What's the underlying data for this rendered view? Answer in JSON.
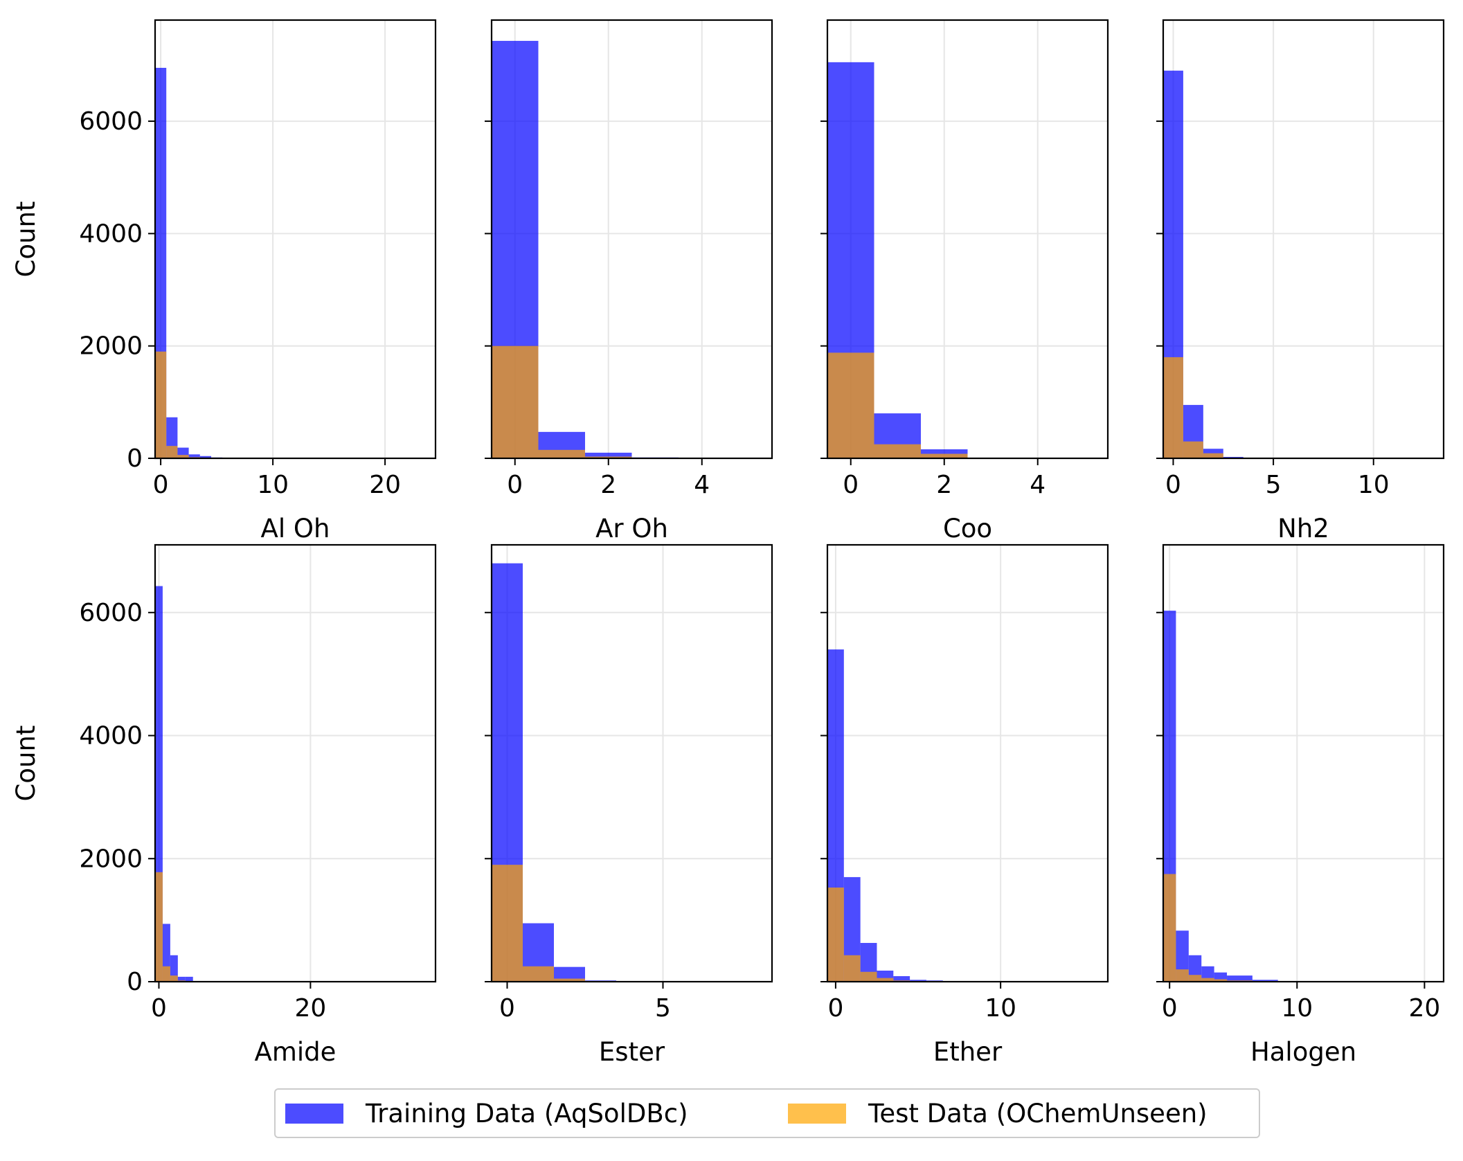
{
  "colors": {
    "training": "#0000ff",
    "test": "#ffa500",
    "overlap": "#cc8844",
    "grid": "#e6e6e6"
  },
  "legend": {
    "training_label": "Training Data (AqSolDBc)",
    "test_label": "Test Data (OChemUnseen)"
  },
  "chart_data": [
    {
      "type": "bar",
      "xlabel": "Al Oh",
      "ylabel": "Count",
      "ylim": [
        0,
        7800
      ],
      "xlim": [
        -0.5,
        24.5
      ],
      "xticks": [
        0,
        10,
        20
      ],
      "yticks": [
        0,
        2000,
        4000,
        6000
      ],
      "grid": true,
      "series": [
        {
          "name": "Training Data (AqSolDBc)",
          "bins": [
            [
              -0.5,
              0.5,
              6950
            ],
            [
              0.5,
              1.5,
              730
            ],
            [
              1.5,
              2.5,
              190
            ],
            [
              2.5,
              3.5,
              70
            ],
            [
              3.5,
              4.5,
              40
            ],
            [
              4.5,
              5.5,
              15
            ]
          ]
        },
        {
          "name": "Test Data (OChemUnseen)",
          "bins": [
            [
              -0.5,
              0.5,
              1900
            ],
            [
              0.5,
              1.5,
              220
            ],
            [
              1.5,
              2.5,
              60
            ],
            [
              2.5,
              3.5,
              20
            ],
            [
              3.5,
              4.5,
              10
            ]
          ]
        }
      ]
    },
    {
      "type": "bar",
      "xlabel": "Ar Oh",
      "ylabel": "",
      "ylim": [
        0,
        7800
      ],
      "xlim": [
        -0.5,
        5.5
      ],
      "xticks": [
        0,
        2,
        4
      ],
      "yticks": [
        0,
        2000,
        4000,
        6000
      ],
      "grid": true,
      "series": [
        {
          "name": "Training Data (AqSolDBc)",
          "bins": [
            [
              -0.5,
              0.5,
              7430
            ],
            [
              0.5,
              1.5,
              470
            ],
            [
              1.5,
              2.5,
              100
            ],
            [
              2.5,
              3.5,
              15
            ]
          ]
        },
        {
          "name": "Test Data (OChemUnseen)",
          "bins": [
            [
              -0.5,
              0.5,
              2000
            ],
            [
              0.5,
              1.5,
              150
            ],
            [
              1.5,
              2.5,
              30
            ]
          ]
        }
      ]
    },
    {
      "type": "bar",
      "xlabel": "Coo",
      "ylabel": "",
      "ylim": [
        0,
        7800
      ],
      "xlim": [
        -0.5,
        5.5
      ],
      "xticks": [
        0,
        2,
        4
      ],
      "yticks": [
        0,
        2000,
        4000,
        6000
      ],
      "grid": true,
      "series": [
        {
          "name": "Training Data (AqSolDBc)",
          "bins": [
            [
              -0.5,
              0.5,
              7050
            ],
            [
              0.5,
              1.5,
              800
            ],
            [
              1.5,
              2.5,
              160
            ]
          ]
        },
        {
          "name": "Test Data (OChemUnseen)",
          "bins": [
            [
              -0.5,
              0.5,
              1880
            ],
            [
              0.5,
              1.5,
              250
            ],
            [
              1.5,
              2.5,
              80
            ]
          ]
        }
      ]
    },
    {
      "type": "bar",
      "xlabel": "Nh2",
      "ylabel": "",
      "ylim": [
        0,
        7800
      ],
      "xlim": [
        -0.5,
        13.5
      ],
      "xticks": [
        0,
        5,
        10
      ],
      "yticks": [
        0,
        2000,
        4000,
        6000
      ],
      "grid": true,
      "series": [
        {
          "name": "Training Data (AqSolDBc)",
          "bins": [
            [
              -0.5,
              0.5,
              6900
            ],
            [
              0.5,
              1.5,
              950
            ],
            [
              1.5,
              2.5,
              170
            ],
            [
              2.5,
              3.5,
              25
            ]
          ]
        },
        {
          "name": "Test Data (OChemUnseen)",
          "bins": [
            [
              -0.5,
              0.5,
              1800
            ],
            [
              0.5,
              1.5,
              300
            ],
            [
              1.5,
              2.5,
              90
            ],
            [
              2.5,
              3.5,
              10
            ]
          ]
        }
      ]
    },
    {
      "type": "bar",
      "xlabel": "Amide",
      "ylabel": "Count",
      "ylim": [
        0,
        7100
      ],
      "xlim": [
        -0.5,
        36.5
      ],
      "xticks": [
        0,
        20
      ],
      "yticks": [
        0,
        2000,
        4000,
        6000
      ],
      "grid": true,
      "series": [
        {
          "name": "Training Data (AqSolDBc)",
          "bins": [
            [
              -0.5,
              0.5,
              6430
            ],
            [
              0.5,
              1.5,
              940
            ],
            [
              1.5,
              2.5,
              430
            ],
            [
              2.5,
              3.5,
              80
            ],
            [
              3.5,
              4.5,
              80
            ],
            [
              4.5,
              5.5,
              10
            ]
          ]
        },
        {
          "name": "Test Data (OChemUnseen)",
          "bins": [
            [
              -0.5,
              0.5,
              1780
            ],
            [
              0.5,
              1.5,
              250
            ],
            [
              1.5,
              2.5,
              100
            ],
            [
              2.5,
              3.5,
              20
            ],
            [
              3.5,
              4.5,
              10
            ]
          ]
        }
      ]
    },
    {
      "type": "bar",
      "xlabel": "Ester",
      "ylabel": "",
      "ylim": [
        0,
        7100
      ],
      "xlim": [
        -0.5,
        8.5
      ],
      "xticks": [
        0,
        5
      ],
      "yticks": [
        0,
        2000,
        4000,
        6000
      ],
      "grid": true,
      "series": [
        {
          "name": "Training Data (AqSolDBc)",
          "bins": [
            [
              -0.5,
              0.5,
              6800
            ],
            [
              0.5,
              1.5,
              950
            ],
            [
              1.5,
              2.5,
              240
            ],
            [
              2.5,
              3.5,
              20
            ]
          ]
        },
        {
          "name": "Test Data (OChemUnseen)",
          "bins": [
            [
              -0.5,
              0.5,
              1900
            ],
            [
              0.5,
              1.5,
              250
            ],
            [
              1.5,
              2.5,
              50
            ]
          ]
        }
      ]
    },
    {
      "type": "bar",
      "xlabel": "Ether",
      "ylabel": "",
      "ylim": [
        0,
        7100
      ],
      "xlim": [
        -0.5,
        16.5
      ],
      "xticks": [
        0,
        10
      ],
      "yticks": [
        0,
        2000,
        4000,
        6000
      ],
      "grid": true,
      "series": [
        {
          "name": "Training Data (AqSolDBc)",
          "bins": [
            [
              -0.5,
              0.5,
              5400
            ],
            [
              0.5,
              1.5,
              1700
            ],
            [
              1.5,
              2.5,
              630
            ],
            [
              2.5,
              3.5,
              180
            ],
            [
              3.5,
              4.5,
              90
            ],
            [
              4.5,
              5.5,
              30
            ],
            [
              5.5,
              6.5,
              20
            ],
            [
              6.5,
              7.5,
              5
            ]
          ]
        },
        {
          "name": "Test Data (OChemUnseen)",
          "bins": [
            [
              -0.5,
              0.5,
              1530
            ],
            [
              0.5,
              1.5,
              430
            ],
            [
              1.5,
              2.5,
              160
            ],
            [
              2.5,
              3.5,
              60
            ],
            [
              3.5,
              4.5,
              20
            ],
            [
              4.5,
              5.5,
              10
            ]
          ]
        }
      ]
    },
    {
      "type": "bar",
      "xlabel": "Halogen",
      "ylabel": "",
      "ylim": [
        0,
        7100
      ],
      "xlim": [
        -0.5,
        21.5
      ],
      "xticks": [
        0,
        10,
        20
      ],
      "yticks": [
        0,
        2000,
        4000,
        6000
      ],
      "grid": true,
      "series": [
        {
          "name": "Training Data (AqSolDBc)",
          "bins": [
            [
              -0.5,
              0.5,
              6030
            ],
            [
              0.5,
              1.5,
              830
            ],
            [
              1.5,
              2.5,
              430
            ],
            [
              2.5,
              3.5,
              250
            ],
            [
              3.5,
              4.5,
              150
            ],
            [
              4.5,
              6.5,
              100
            ],
            [
              6.5,
              8.5,
              30
            ],
            [
              8.5,
              10.5,
              10
            ]
          ]
        },
        {
          "name": "Test Data (OChemUnseen)",
          "bins": [
            [
              -0.5,
              0.5,
              1750
            ],
            [
              0.5,
              1.5,
              200
            ],
            [
              1.5,
              2.5,
              110
            ],
            [
              2.5,
              3.5,
              60
            ],
            [
              3.5,
              4.5,
              40
            ],
            [
              4.5,
              6.5,
              20
            ],
            [
              6.5,
              8.5,
              10
            ]
          ]
        }
      ]
    }
  ]
}
